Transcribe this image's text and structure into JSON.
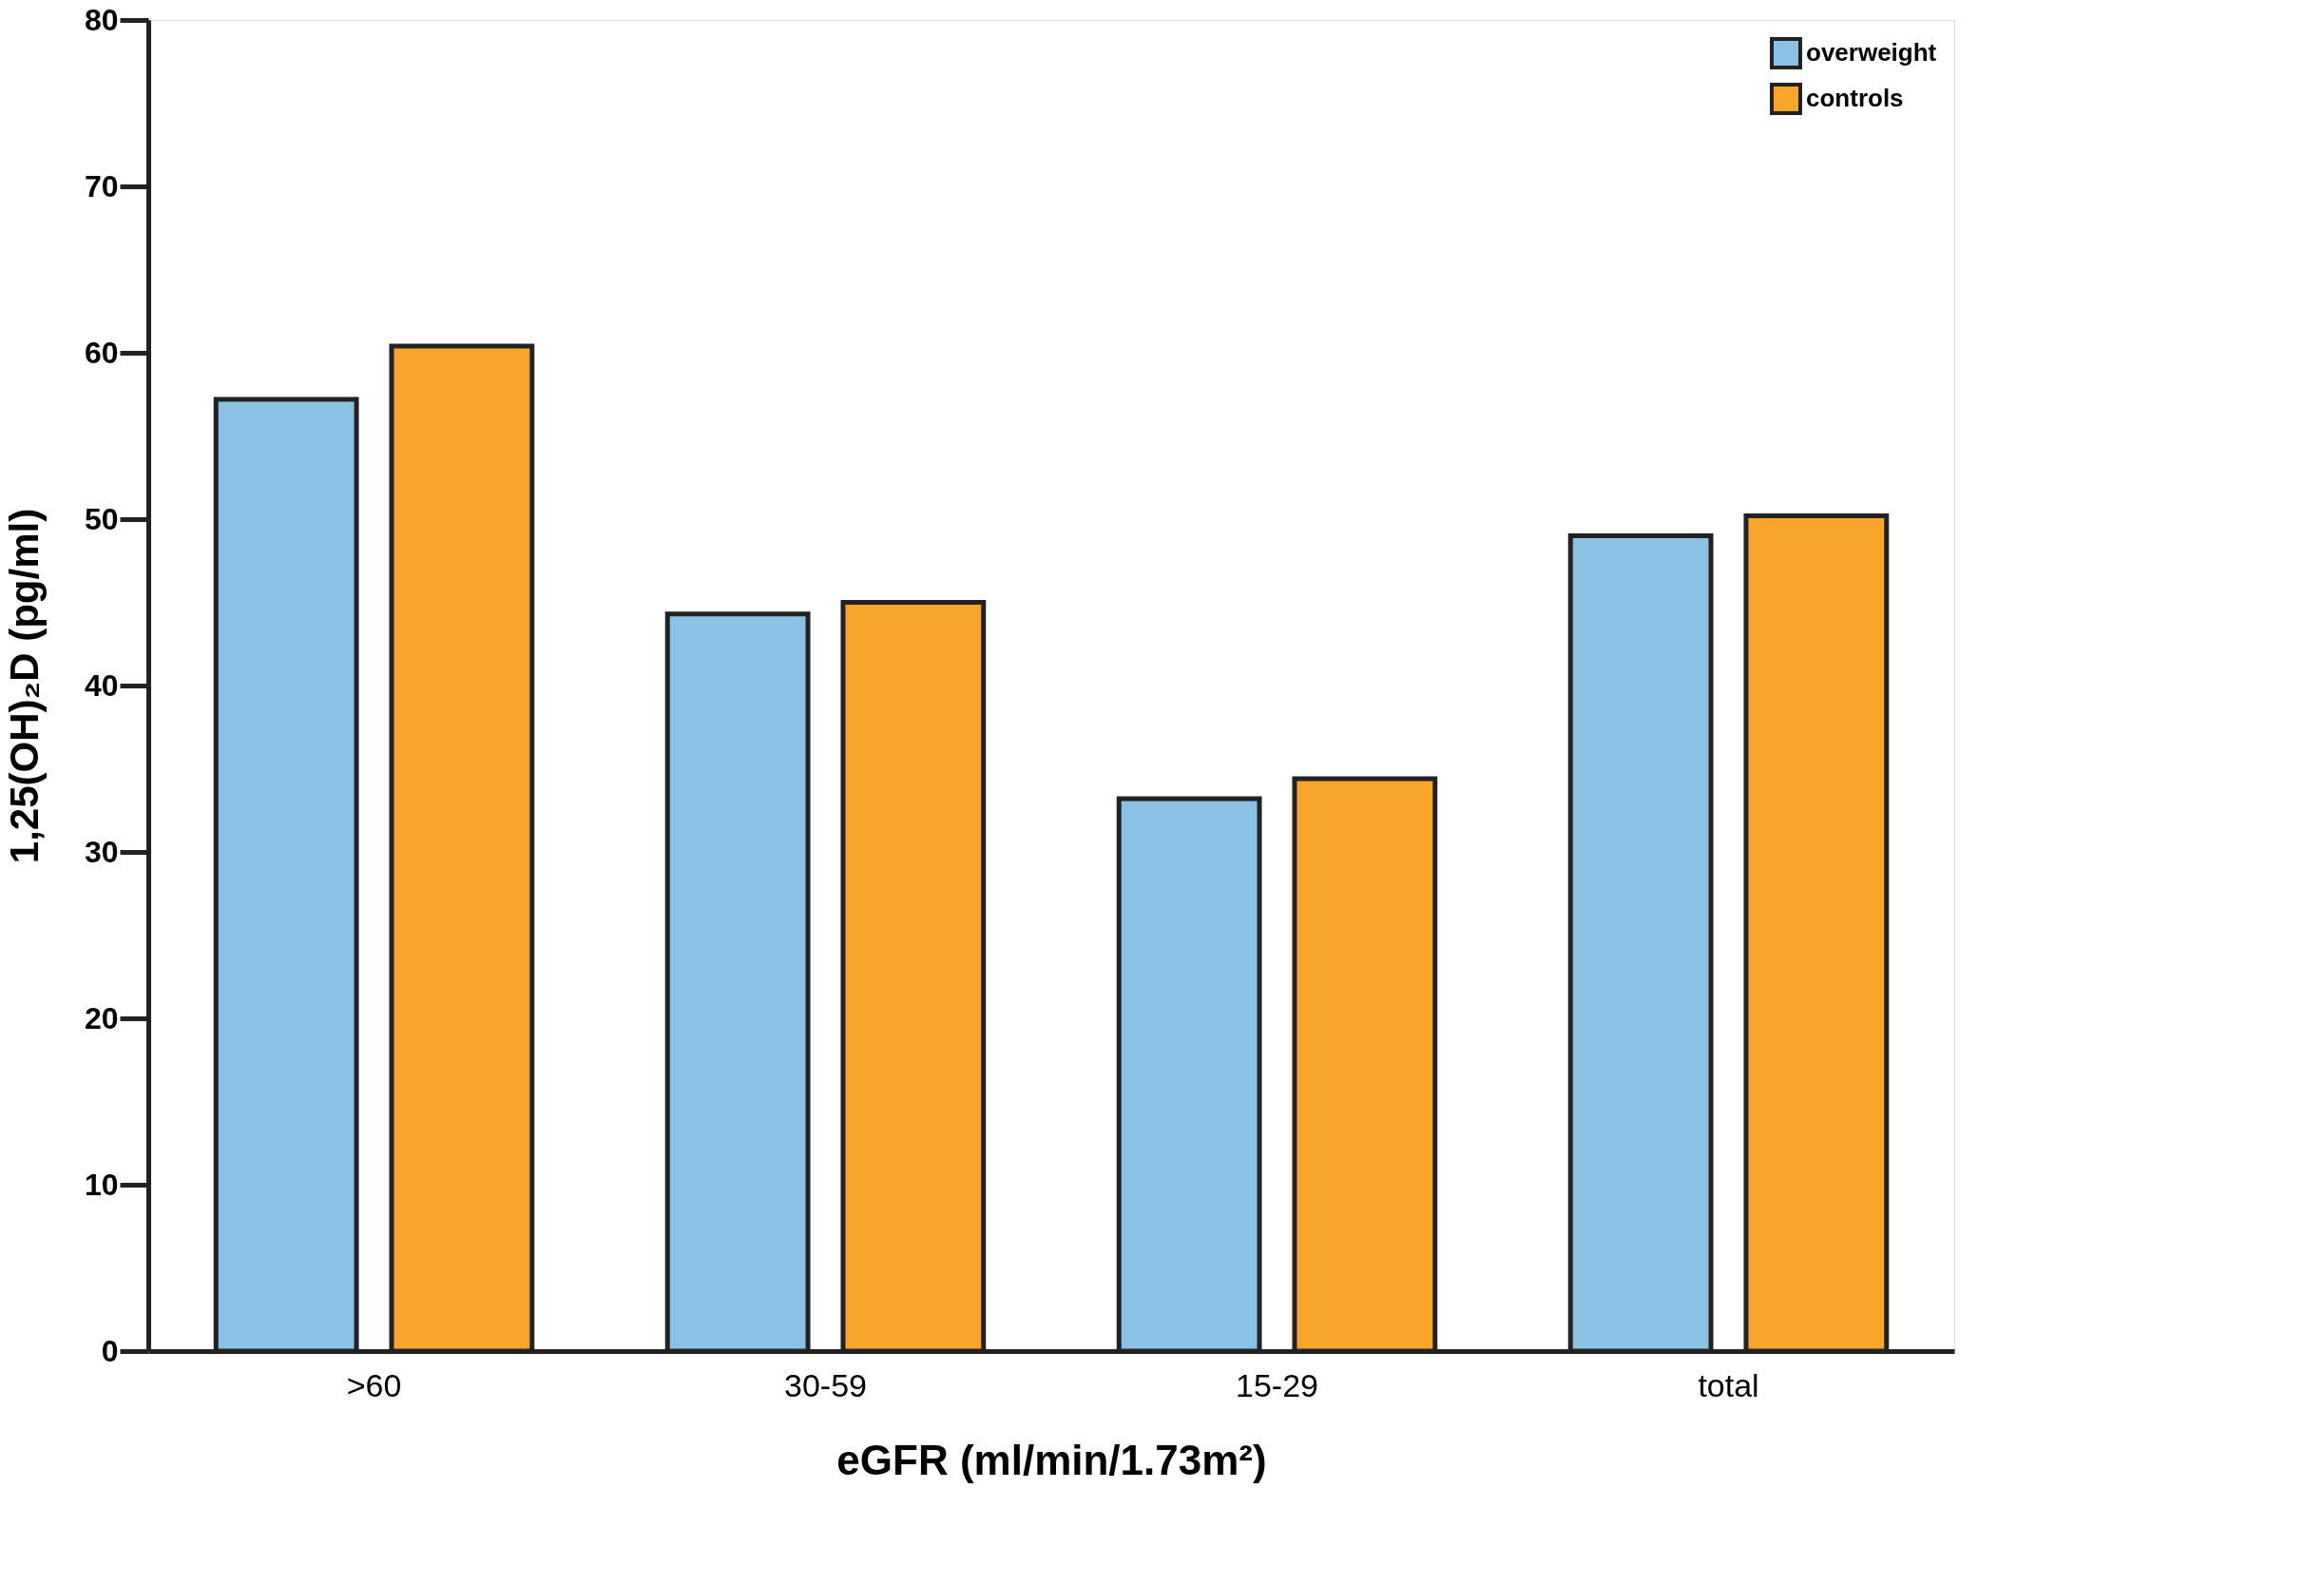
{
  "chart_data": {
    "type": "bar",
    "xlabel": "eGFR (ml/min/1.73m²)",
    "ylabel": "1,25(OH)₂D (pg/ml)",
    "categories": [
      ">60",
      "30-59",
      "15-29",
      "total"
    ],
    "series": [
      {
        "name": "overweight",
        "color": "#8cc1e6",
        "values": [
          57.2,
          44.3,
          33.2,
          49.0
        ]
      },
      {
        "name": "controls",
        "color": "#f8a52c",
        "values": [
          60.4,
          45.0,
          34.4,
          50.2
        ]
      }
    ],
    "ylim": [
      0,
      80
    ],
    "yticks": [
      0,
      10,
      20,
      30,
      40,
      50,
      60,
      70,
      80
    ],
    "grid": false,
    "legend": "top right"
  }
}
